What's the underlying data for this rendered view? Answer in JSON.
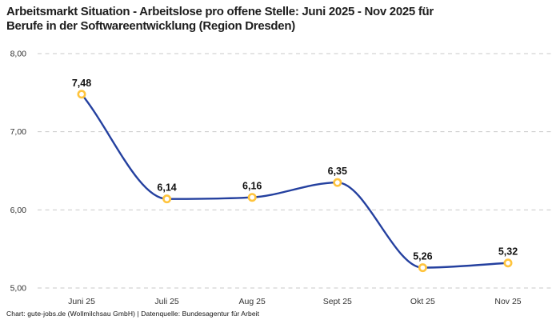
{
  "header": {
    "title_line1": "Arbeitsmarkt Situation - Arbeitslose pro offene Stelle: Juni 2025 - Nov 2025 für",
    "title_line2": "Berufe in der Softwareentwicklung (Region Dresden)"
  },
  "footer": {
    "source": "Chart: gute-jobs.de (Wollmilchsau GmbH) | Datenquelle: Bundesagentur für Arbeit"
  },
  "chart_data": {
    "type": "line",
    "title": "Arbeitsmarkt Situation - Arbeitslose pro offene Stelle: Juni 2025 - Nov 2025 für Berufe in der Softwareentwicklung (Region Dresden)",
    "categories": [
      "Juni 25",
      "Juli 25",
      "Aug 25",
      "Sept 25",
      "Okt 25",
      "Nov 25"
    ],
    "values": [
      7.48,
      6.14,
      6.16,
      6.35,
      5.26,
      5.32
    ],
    "value_labels": [
      "7,48",
      "6,14",
      "6,16",
      "6,35",
      "5,26",
      "5,32"
    ],
    "y_ticks": [
      8,
      7,
      6,
      5
    ],
    "y_tick_labels": [
      "8,00",
      "7,00",
      "6,00",
      "5,00"
    ],
    "ylim": [
      5,
      8
    ],
    "xlabel": "",
    "ylabel": "",
    "grid": "horizontal-dashed",
    "legend": "none",
    "curve": "monotone",
    "source": "Chart: gute-jobs.de (Wollmilchsau GmbH) | Datenquelle: Bundesagentur für Arbeit",
    "colors": {
      "line": "#24409f",
      "marker_stroke": "#ffc43d",
      "marker_fill": "#ffffff",
      "grid": "#c9c9c9",
      "data_label": "#111111",
      "tick_label": "#333333",
      "title": "#1d1d1d"
    }
  }
}
